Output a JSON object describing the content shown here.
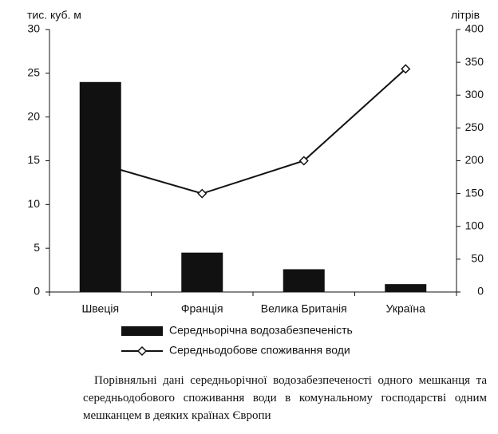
{
  "chart_data": {
    "type": "bar-line",
    "ylabel": "тис. куб. м",
    "y2label": "літрів",
    "categories": [
      "Швеція",
      "Франція",
      "Велика Британія",
      "Україна"
    ],
    "series": [
      {
        "name": "Середньорічна водозабезпеченість",
        "type": "bar",
        "color": "#111111",
        "values": [
          24,
          4.5,
          2.6,
          0.9
        ]
      },
      {
        "name": "Середньодобове споживання води",
        "type": "line",
        "axis": "y2",
        "color": "#111111",
        "values": [
          195,
          150,
          200,
          340
        ]
      }
    ],
    "ylim": [
      0,
      30
    ],
    "yticks": [
      0,
      5,
      10,
      15,
      20,
      25,
      30
    ],
    "y2lim": [
      0,
      400
    ],
    "y2ticks": [
      0,
      50,
      100,
      150,
      200,
      250,
      300,
      350,
      400
    ]
  },
  "caption": "Порівняльні дані середньорічної водозабезпеченості одного мешканця та середньодобового споживання води в комунальному господарстві одним мешканцем в деяких країнах Європи"
}
